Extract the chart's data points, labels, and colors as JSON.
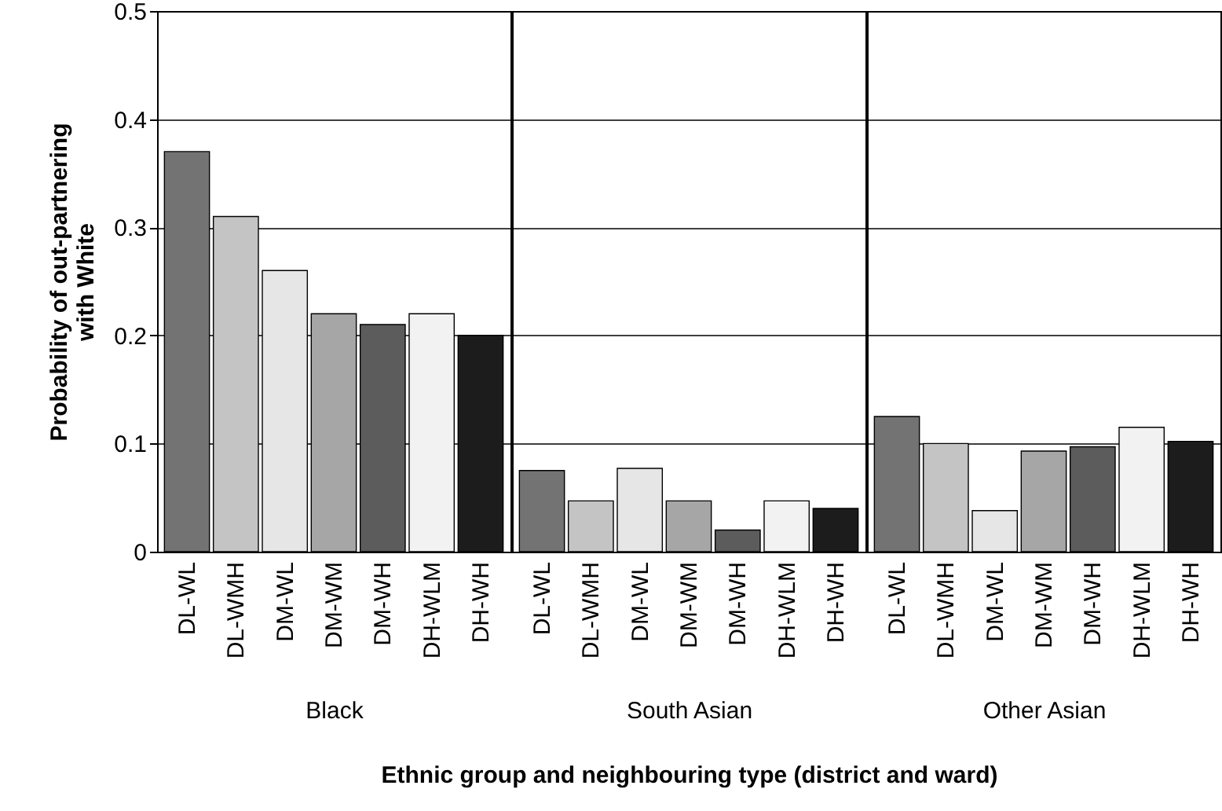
{
  "chart_data": [
    {
      "type": "bar",
      "xlabel": "Black",
      "ylabel": "Probability of out-partnering with White",
      "categories": [
        "DL-WL",
        "DL-WMH",
        "DM-WL",
        "DM-WM",
        "DM-WH",
        "DH-WLM",
        "DH-WH"
      ],
      "values": [
        0.37,
        0.31,
        0.26,
        0.22,
        0.21,
        0.22,
        0.2
      ],
      "colors": [
        "#737373",
        "#c4c4c4",
        "#e6e6e6",
        "#a6a6a6",
        "#5c5c5c",
        "#f2f2f2",
        "#1c1c1c"
      ],
      "ylim": [
        0,
        0.5
      ],
      "yticks": [
        {
          "value": 0,
          "label": "0"
        },
        0.1,
        0.2,
        0.3,
        0.4,
        0.5
      ],
      "grid": "y"
    },
    {
      "type": "bar",
      "xlabel": "South Asian",
      "categories": [
        "DL-WL",
        "DL-WMH",
        "DM-WL",
        "DM-WM",
        "DM-WH",
        "DH-WLM",
        "DH-WH"
      ],
      "values": [
        0.075,
        0.047,
        0.077,
        0.047,
        0.02,
        0.047,
        0.04
      ],
      "colors": [
        "#737373",
        "#c4c4c4",
        "#e6e6e6",
        "#a6a6a6",
        "#5c5c5c",
        "#f2f2f2",
        "#1c1c1c"
      ],
      "ylim": [
        0,
        0.5
      ],
      "yticks": [
        0,
        0.1,
        0.2,
        0.3,
        0.4,
        0.5
      ],
      "grid": "y",
      "tick_labels": "x",
      "annotations": [
        "Ethnic group and neighbouring type (district and ward)"
      ]
    },
    {
      "type": "bar",
      "xlabel": "Other Asian",
      "categories": [
        "DL-WL",
        "DL-WMH",
        "DM-WL",
        "DM-WM",
        "DM-WH",
        "DH-WLM",
        "DH-WH"
      ],
      "values": [
        0.125,
        0.1,
        0.038,
        0.093,
        0.097,
        0.115,
        0.102
      ],
      "colors": [
        "#737373",
        "#c4c4c4",
        "#e6e6e6",
        "#a6a6a6",
        "#5c5c5c",
        "#f2f2f2",
        "#1c1c1c"
      ],
      "ylim": [
        0,
        0.5
      ],
      "yticks": [
        0,
        0.1,
        0.2,
        0.3,
        0.4,
        0.5
      ],
      "grid": "y",
      "tick_labels": "x"
    }
  ]
}
